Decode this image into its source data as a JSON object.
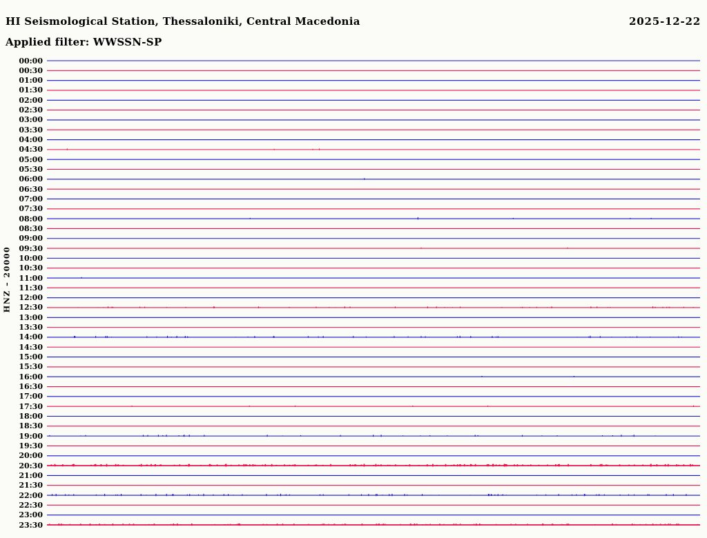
{
  "header": {
    "title": "HI Seismological Station, Thessaloniki, Central Macedonia",
    "date": "2025-12-22",
    "filter": "Applied filter: WWSSN-SP"
  },
  "axis": {
    "channel_label": "HNZ – 20000"
  },
  "colors": {
    "hour_trace": "#1414cc",
    "half_hour_trace": "#e8124a",
    "text": "#000000",
    "background": "#fbfbf8"
  },
  "chart_data": {
    "type": "helicorder",
    "title": "HI Seismological Station, Thessaloniki, Central Macedonia",
    "date": "2025-12-22",
    "applied_filter": "WWSSN-SP",
    "channel_scale_label": "HNZ – 20000",
    "row_duration_minutes": 30,
    "legend_note": "blue = traces starting on the hour, red = traces starting on the half hour; ticks/amp encode visible seismic noise bursts, spikes are [fraction_along_row, amplitude_px]",
    "rows": [
      {
        "t": "00:00",
        "color": "blue",
        "ticks": 0,
        "amp": 0,
        "spikes": []
      },
      {
        "t": "00:30",
        "color": "red",
        "ticks": 0,
        "amp": 0,
        "spikes": []
      },
      {
        "t": "01:00",
        "color": "blue",
        "ticks": 0,
        "amp": 0,
        "spikes": []
      },
      {
        "t": "01:30",
        "color": "red",
        "ticks": 0,
        "amp": 0,
        "spikes": []
      },
      {
        "t": "02:00",
        "color": "blue",
        "ticks": 0,
        "amp": 0,
        "spikes": []
      },
      {
        "t": "02:30",
        "color": "red",
        "ticks": 0,
        "amp": 0,
        "spikes": []
      },
      {
        "t": "03:00",
        "color": "blue",
        "ticks": 0,
        "amp": 0,
        "spikes": []
      },
      {
        "t": "03:30",
        "color": "red",
        "ticks": 0,
        "amp": 0,
        "spikes": []
      },
      {
        "t": "04:00",
        "color": "blue",
        "ticks": 0,
        "amp": 0,
        "spikes": []
      },
      {
        "t": "04:30",
        "color": "red",
        "ticks": 0,
        "amp": 0,
        "spikes": [
          [
            0.031,
            1.5
          ],
          [
            0.348,
            1.2
          ],
          [
            0.407,
            1.2
          ],
          [
            0.417,
            1.5
          ]
        ]
      },
      {
        "t": "05:00",
        "color": "blue",
        "ticks": 0,
        "amp": 0,
        "spikes": []
      },
      {
        "t": "05:30",
        "color": "red",
        "ticks": 0,
        "amp": 0,
        "spikes": []
      },
      {
        "t": "06:00",
        "color": "blue",
        "ticks": 0,
        "amp": 0,
        "spikes": [
          [
            0.486,
            1.5
          ]
        ]
      },
      {
        "t": "06:30",
        "color": "red",
        "ticks": 0,
        "amp": 0,
        "spikes": []
      },
      {
        "t": "07:00",
        "color": "blue",
        "ticks": 0,
        "amp": 0,
        "spikes": []
      },
      {
        "t": "07:30",
        "color": "red",
        "ticks": 0,
        "amp": 0,
        "spikes": []
      },
      {
        "t": "08:00",
        "color": "blue",
        "ticks": 0,
        "amp": 0,
        "spikes": [
          [
            0.311,
            1.2
          ],
          [
            0.568,
            2.2
          ],
          [
            0.714,
            1.2
          ],
          [
            0.893,
            1.2
          ],
          [
            0.925,
            1.2
          ]
        ]
      },
      {
        "t": "08:30",
        "color": "red",
        "ticks": 0,
        "amp": 0,
        "spikes": []
      },
      {
        "t": "09:00",
        "color": "blue",
        "ticks": 0,
        "amp": 0,
        "spikes": []
      },
      {
        "t": "09:30",
        "color": "red",
        "ticks": 0,
        "amp": 0,
        "spikes": [
          [
            0.573,
            1.3
          ],
          [
            0.797,
            1.3
          ]
        ]
      },
      {
        "t": "10:00",
        "color": "blue",
        "ticks": 0,
        "amp": 0,
        "spikes": []
      },
      {
        "t": "10:30",
        "color": "red",
        "ticks": 0,
        "amp": 0,
        "spikes": []
      },
      {
        "t": "11:00",
        "color": "blue",
        "ticks": 0,
        "amp": 0,
        "spikes": [
          [
            0.053,
            1.3
          ]
        ]
      },
      {
        "t": "11:30",
        "color": "red",
        "ticks": 0,
        "amp": 0,
        "spikes": []
      },
      {
        "t": "12:00",
        "color": "blue",
        "ticks": 0,
        "amp": 0,
        "spikes": []
      },
      {
        "t": "12:30",
        "color": "red",
        "ticks": 50,
        "amp": 1.3,
        "spikes": []
      },
      {
        "t": "13:00",
        "color": "blue",
        "ticks": 0,
        "amp": 0,
        "spikes": []
      },
      {
        "t": "13:30",
        "color": "red",
        "ticks": 0,
        "amp": 0,
        "spikes": []
      },
      {
        "t": "14:00",
        "color": "blue",
        "ticks": 55,
        "amp": 1.5,
        "spikes": []
      },
      {
        "t": "14:30",
        "color": "red",
        "ticks": 0,
        "amp": 0,
        "spikes": []
      },
      {
        "t": "15:00",
        "color": "blue",
        "ticks": 0,
        "amp": 0,
        "spikes": []
      },
      {
        "t": "15:30",
        "color": "red",
        "ticks": 0,
        "amp": 0,
        "spikes": []
      },
      {
        "t": "16:00",
        "color": "blue",
        "ticks": 0,
        "amp": 0,
        "spikes": [
          [
            0.666,
            1.2
          ],
          [
            0.807,
            1.2
          ]
        ]
      },
      {
        "t": "16:30",
        "color": "red",
        "ticks": 0,
        "amp": 0,
        "spikes": []
      },
      {
        "t": "17:00",
        "color": "blue",
        "ticks": 0,
        "amp": 0,
        "spikes": []
      },
      {
        "t": "17:30",
        "color": "red",
        "ticks": 0,
        "amp": 0,
        "spikes": [
          [
            0.13,
            1.2
          ],
          [
            0.31,
            1.2
          ],
          [
            0.38,
            1.2
          ],
          [
            0.56,
            1.2
          ],
          [
            0.675,
            1.2
          ],
          [
            0.99,
            1.4
          ]
        ]
      },
      {
        "t": "18:00",
        "color": "blue",
        "ticks": 0,
        "amp": 0,
        "spikes": []
      },
      {
        "t": "18:30",
        "color": "red",
        "ticks": 0,
        "amp": 0,
        "spikes": []
      },
      {
        "t": "19:00",
        "color": "blue",
        "ticks": 32,
        "amp": 1.3,
        "spikes": [
          [
            0.21,
            2.0
          ],
          [
            0.218,
            1.8
          ]
        ]
      },
      {
        "t": "19:30",
        "color": "red",
        "ticks": 0,
        "amp": 0,
        "spikes": []
      },
      {
        "t": "20:00",
        "color": "blue",
        "ticks": 0,
        "amp": 0,
        "spikes": []
      },
      {
        "t": "20:30",
        "color": "red",
        "ticks": 170,
        "amp": 2.0,
        "thick": true,
        "spikes": []
      },
      {
        "t": "21:00",
        "color": "blue",
        "ticks": 0,
        "amp": 0,
        "spikes": []
      },
      {
        "t": "21:30",
        "color": "red",
        "ticks": 0,
        "amp": 0,
        "spikes": []
      },
      {
        "t": "22:00",
        "color": "blue",
        "ticks": 80,
        "amp": 1.6,
        "spikes": []
      },
      {
        "t": "22:30",
        "color": "red",
        "ticks": 0,
        "amp": 0,
        "spikes": []
      },
      {
        "t": "23:00",
        "color": "blue",
        "ticks": 0,
        "amp": 0,
        "spikes": []
      },
      {
        "t": "23:30",
        "color": "red",
        "ticks": 150,
        "amp": 1.4,
        "thick": true,
        "spikes": []
      }
    ]
  }
}
